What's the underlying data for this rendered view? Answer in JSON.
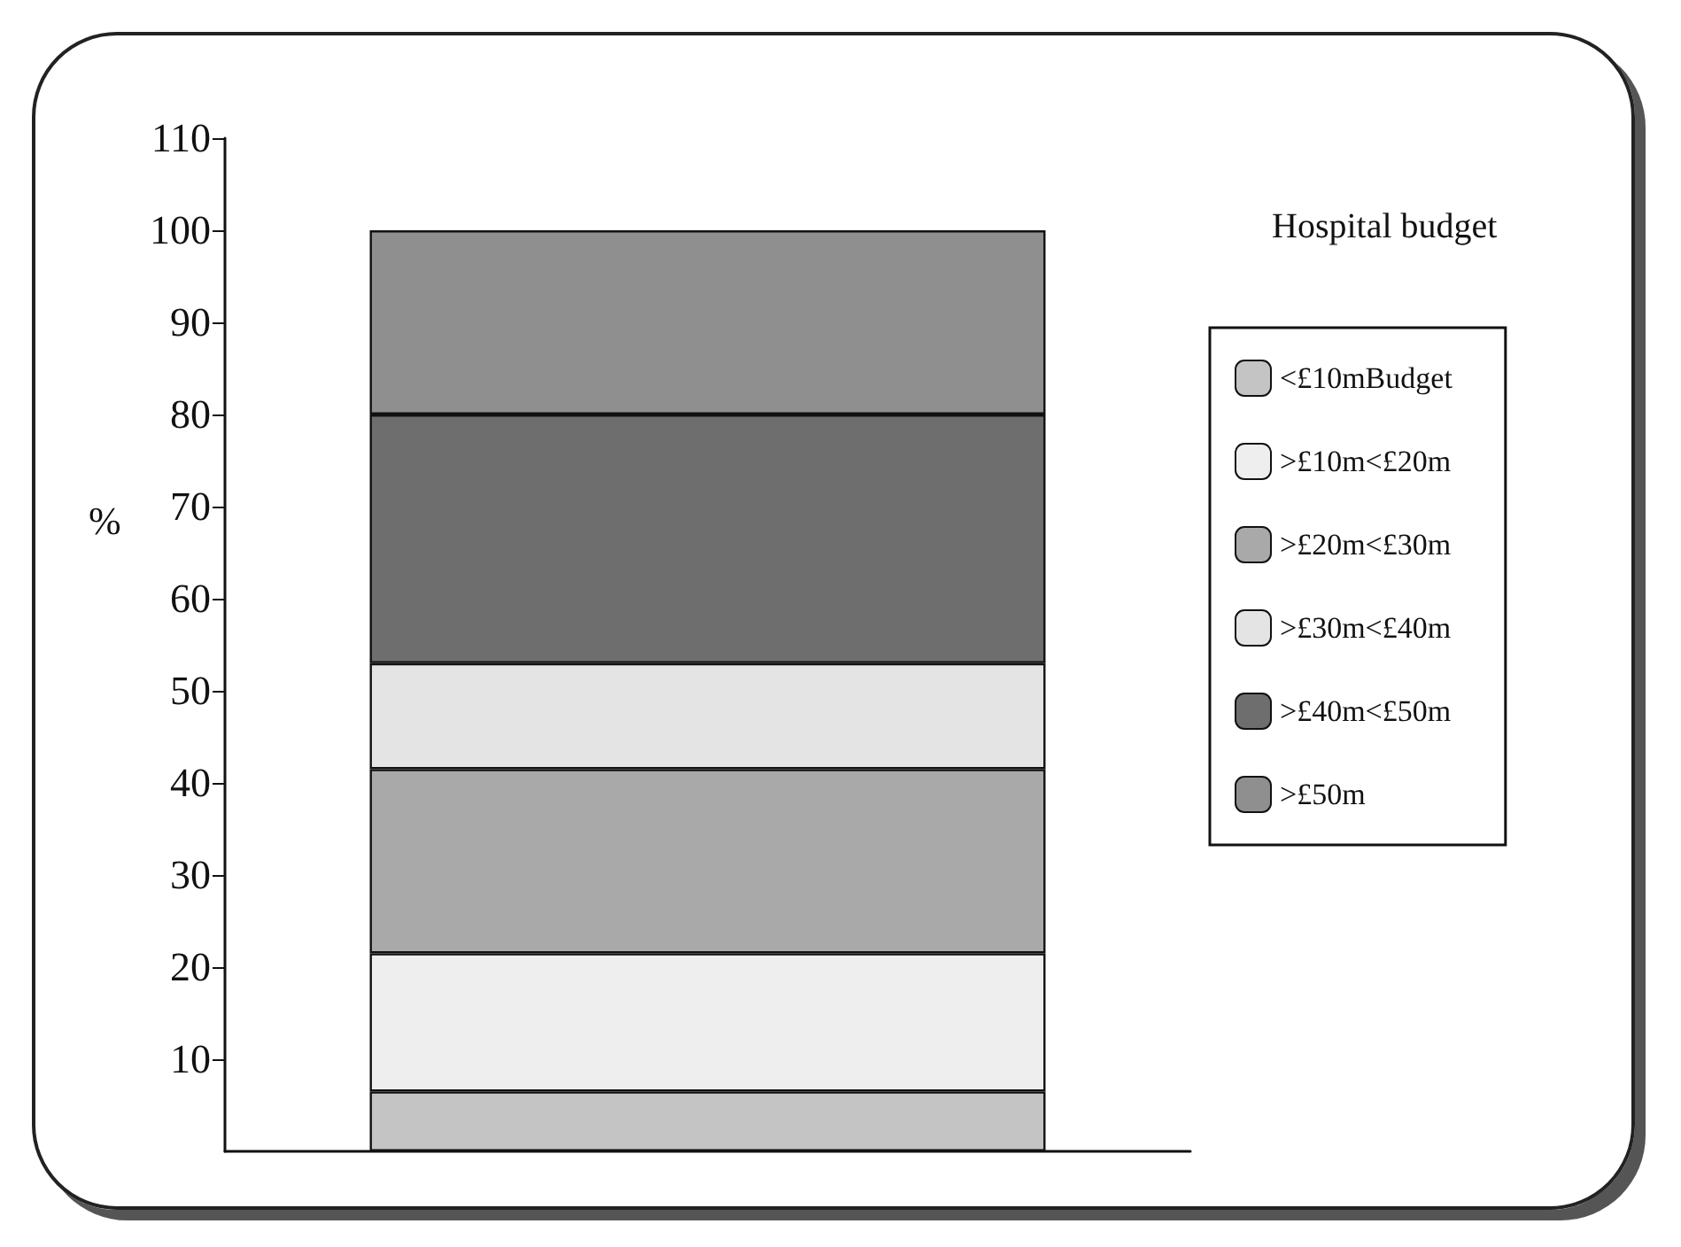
{
  "chart_data": {
    "type": "bar",
    "stacked": true,
    "legend_title": "Hospital budget",
    "ylabel": "%",
    "categories": [
      null
    ],
    "series": [
      {
        "name": "<£10mBudget",
        "color": "#c4c4c4",
        "values": [
          6.5
        ]
      },
      {
        "name": ">£10m<£20m",
        "color": "#eeeeee",
        "values": [
          15
        ]
      },
      {
        "name": ">£20m<£30m",
        "color": "#a9a9a9",
        "values": [
          20
        ]
      },
      {
        "name": ">£30m<£40m",
        "color": "#e4e4e4",
        "values": [
          11.5
        ]
      },
      {
        "name": ">£40m<£50m",
        "color": "#6e6e6e",
        "values": [
          27
        ]
      },
      {
        "name": ">£50m",
        "color": "#8f8f8f",
        "values": [
          20
        ]
      }
    ],
    "ylim": [
      0,
      110
    ],
    "yticks": [
      10,
      20,
      30,
      40,
      50,
      60,
      70,
      80,
      90,
      100,
      110
    ],
    "grid": false,
    "legend": "right"
  }
}
